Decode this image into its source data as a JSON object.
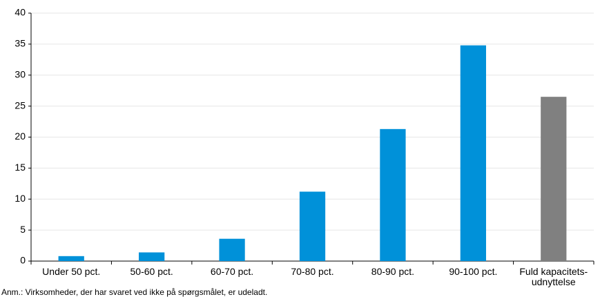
{
  "chart_data": {
    "type": "bar",
    "categories": [
      "Under 50 pct.",
      "50-60 pct.",
      "60-70 pct.",
      "70-80 pct.",
      "80-90 pct.",
      "90-100 pct.",
      "Fuld kapacitets-\nudnyttelse"
    ],
    "values": [
      0.8,
      1.4,
      3.6,
      11.2,
      21.3,
      34.8,
      26.5
    ],
    "colors": [
      "#0091d9",
      "#0091d9",
      "#0091d9",
      "#0091d9",
      "#0091d9",
      "#0091d9",
      "#808080"
    ],
    "ylim": [
      0,
      40
    ],
    "yticks": [
      0,
      5,
      10,
      15,
      20,
      25,
      30,
      35,
      40
    ],
    "grid": true,
    "note": "Anm.: Virksomheder, der har svaret ved ikke på spørgsmålet, er udeladt."
  }
}
